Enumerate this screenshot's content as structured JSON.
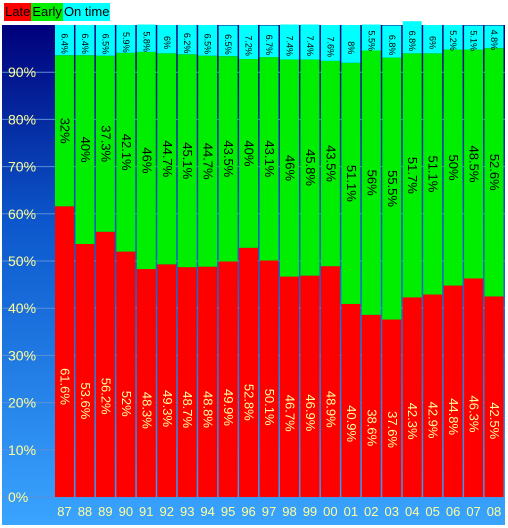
{
  "chart_data": {
    "type": "bar",
    "stacked": true,
    "orientation": "vertical",
    "title": "",
    "xlabel": "",
    "ylabel": "",
    "ylim": [
      0,
      100
    ],
    "yticks": [
      "0%",
      "10%",
      "20%",
      "30%",
      "40%",
      "50%",
      "60%",
      "70%",
      "80%",
      "90%"
    ],
    "grid": true,
    "legend_position": "top-left",
    "categories": [
      "87",
      "88",
      "89",
      "90",
      "91",
      "92",
      "93",
      "94",
      "95",
      "96",
      "97",
      "98",
      "99",
      "00",
      "01",
      "02",
      "03",
      "04",
      "05",
      "06",
      "07",
      "08"
    ],
    "series": [
      {
        "name": "Late",
        "color": "#ff0000",
        "values": [
          61.6,
          53.6,
          56.2,
          52,
          48.3,
          49.3,
          48.7,
          48.8,
          49.9,
          52.8,
          50.1,
          46.7,
          46.9,
          48.9,
          40.9,
          38.6,
          37.6,
          42.3,
          42.9,
          44.8,
          46.3,
          42.5
        ],
        "labels": [
          "61.6%",
          "53.6%",
          "56.2%",
          "52%",
          "48.3%",
          "49.3%",
          "48.7%",
          "48.8%",
          "49.9%",
          "52.8%",
          "50.1%",
          "46.7%",
          "46.9%",
          "48.9%",
          "40.9%",
          "38.6%",
          "37.6%",
          "42.3%",
          "42.9%",
          "44.8%",
          "46.3%",
          "42.5%"
        ]
      },
      {
        "name": "Early",
        "color": "#00ee00",
        "values": [
          32,
          40,
          37.3,
          42.1,
          46,
          44.7,
          45.1,
          44.7,
          43.5,
          40,
          43.1,
          46,
          45.8,
          43.5,
          51.1,
          56,
          55.5,
          51.7,
          51.1,
          50,
          48.5,
          52.6
        ],
        "labels": [
          "32%",
          "40%",
          "37.3%",
          "42.1%",
          "46%",
          "44.7%",
          "45.1%",
          "44.7%",
          "43.5%",
          "40%",
          "43.1%",
          "46%",
          "45.8%",
          "43.5%",
          "51.1%",
          "56%",
          "55.5%",
          "51.7%",
          "51.1%",
          "50%",
          "48.5%",
          "52.6%"
        ]
      },
      {
        "name": "On time",
        "color": "#00ffff",
        "values": [
          6.4,
          6.4,
          6.5,
          5.9,
          5.8,
          6,
          6.2,
          6.5,
          6.5,
          7.2,
          6.7,
          7.4,
          7.4,
          7.6,
          8,
          5.5,
          6.8,
          6.8,
          6,
          5.2,
          5.1,
          4.8
        ],
        "labels": [
          "6.4%",
          "6.4%",
          "6.5%",
          "5.9%",
          "5.8%",
          "6%",
          "6.2%",
          "6.5%",
          "6.5%",
          "7.2%",
          "6.7%",
          "7.4%",
          "7.4%",
          "7.6%",
          "8%",
          "5.5%",
          "6.8%",
          "6.8%",
          "6%",
          "5.2%",
          "5.1%",
          "4.8%"
        ]
      }
    ]
  }
}
